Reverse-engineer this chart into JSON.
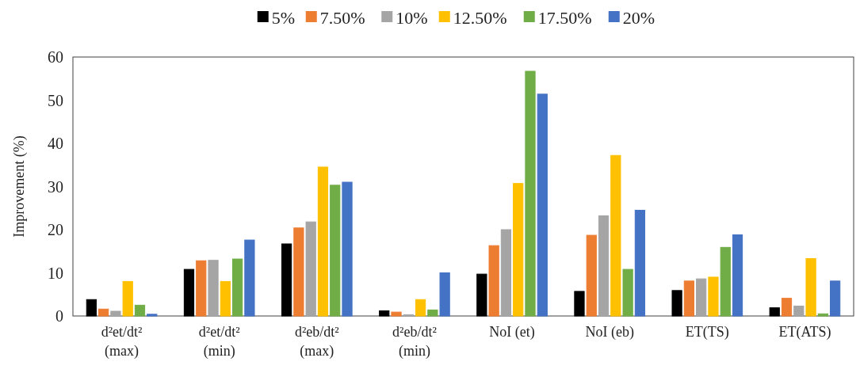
{
  "chart_data": {
    "type": "bar",
    "ylabel": "Improvement (%)",
    "categories": [
      "d²et/dt²\n(max)",
      "d²et/dt²\n(min)",
      "d²eb/dt²\n(max)",
      "d²eb/dt²\n(min)",
      "NoI (et)",
      "NoI (eb)",
      "ET(TS)",
      "ET(ATS)"
    ],
    "series": [
      {
        "name": "5%",
        "color": "#000000",
        "values": [
          3.8,
          10.8,
          16.7,
          1.2,
          9.7,
          5.7,
          5.9,
          1.9
        ]
      },
      {
        "name": "7.50%",
        "color": "#ed7d31",
        "values": [
          1.6,
          12.8,
          20.4,
          0.9,
          16.3,
          18.7,
          8.1,
          4.1
        ]
      },
      {
        "name": "10%",
        "color": "#a5a5a5",
        "values": [
          1.1,
          12.9,
          21.8,
          0.3,
          20.0,
          23.2,
          8.6,
          2.3
        ]
      },
      {
        "name": "12.50%",
        "color": "#ffc000",
        "values": [
          8.0,
          8.0,
          34.5,
          3.8,
          30.7,
          37.2,
          9.0,
          13.3
        ]
      },
      {
        "name": "17.50%",
        "color": "#70ad47",
        "values": [
          2.5,
          13.2,
          30.3,
          1.4,
          56.7,
          10.8,
          15.9,
          0.5
        ]
      },
      {
        "name": "20%",
        "color": "#4472c4",
        "values": [
          0.4,
          17.6,
          31.0,
          10.0,
          51.4,
          24.5,
          18.8,
          8.1
        ]
      }
    ],
    "ylim": [
      0,
      60
    ],
    "yticks": [
      0,
      10,
      20,
      30,
      40,
      50,
      60
    ],
    "legend": "top"
  }
}
